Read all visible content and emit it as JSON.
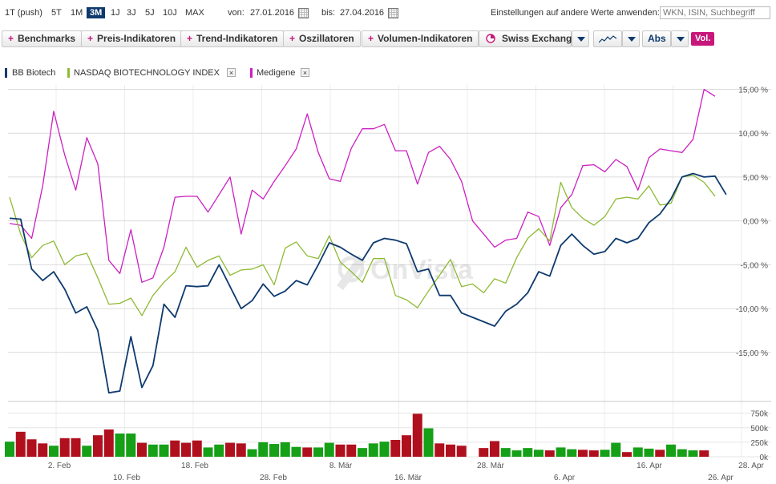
{
  "toolbar": {
    "periods": [
      "1T (push)",
      "5T",
      "1M",
      "3M",
      "1J",
      "3J",
      "5J",
      "10J",
      "MAX"
    ],
    "active_period": "3M",
    "from_label": "von:",
    "from_value": "27.01.2016",
    "to_label": "bis:",
    "to_value": "27.04.2016",
    "apply_label": "Einstellungen auf andere Werte anwenden:",
    "search_placeholder": "WKN, ISIN, Suchbegriff"
  },
  "indicator_buttons": [
    "Benchmarks",
    "Preis-Indikatoren",
    "Trend-Indikatoren",
    "Oszillatoren",
    "Volumen-Indikatoren"
  ],
  "exchange": "Swiss Exchange",
  "scale": "Abs",
  "volume_toggle": "Vol.",
  "colors": {
    "bb": "#0e3a6e",
    "nasdaq": "#8dba34",
    "medigene": "#cc1fc2",
    "vol_up": "#15a017",
    "vol_down": "#b0101e",
    "accent": "#c8177a"
  },
  "chart_data": {
    "type": "line",
    "ylabel_unit": "%",
    "y_ticks": [
      "15,00 %",
      "10,00 %",
      "5,00 %",
      "0,00 %",
      "-5,00 %",
      "-10,00 %",
      "-15,00 %"
    ],
    "y_tick_values": [
      15,
      10,
      5,
      0,
      -5,
      -10,
      -15
    ],
    "ylim": [
      -20.5,
      15.5
    ],
    "x_range": [
      "2016-01-27",
      "2016-04-28"
    ],
    "x_ticks_top": [
      "2. Feb",
      "18. Feb",
      "8. Mär",
      "28. Mär",
      "16. Apr",
      "28. Apr"
    ],
    "x_ticks_bottom": [
      "10. Feb",
      "28. Feb",
      "16. Mär",
      "6. Apr",
      "26. Apr"
    ],
    "series": [
      {
        "name": "BB Biotech",
        "color": "#0e3a6e",
        "removable": false,
        "values": [
          [
            0,
            0.3
          ],
          [
            1,
            0.2
          ],
          [
            2,
            -5.5
          ],
          [
            3,
            -6.8
          ],
          [
            4,
            -5.8
          ],
          [
            5,
            -7.8
          ],
          [
            6,
            -10.5
          ],
          [
            7,
            -9.8
          ],
          [
            8,
            -12.5
          ],
          [
            9,
            -19.6
          ],
          [
            10,
            -19.4
          ],
          [
            11,
            -13.2
          ],
          [
            12,
            -19
          ],
          [
            13,
            -16.5
          ],
          [
            14,
            -9.5
          ],
          [
            15,
            -11
          ],
          [
            16,
            -7.4
          ],
          [
            17,
            -7.5
          ],
          [
            18,
            -7.4
          ],
          [
            19,
            -5
          ],
          [
            20,
            -7.5
          ],
          [
            21,
            -10
          ],
          [
            22,
            -9.1
          ],
          [
            23,
            -7.2
          ],
          [
            24,
            -8.6
          ],
          [
            25,
            -8
          ],
          [
            26,
            -6.8
          ],
          [
            27,
            -7.3
          ],
          [
            28,
            -5
          ],
          [
            29,
            -2.5
          ],
          [
            30,
            -3
          ],
          [
            31,
            -3.8
          ],
          [
            32,
            -4.5
          ],
          [
            33,
            -2.5
          ],
          [
            34,
            -2
          ],
          [
            35,
            -2.2
          ],
          [
            36,
            -2.6
          ],
          [
            37,
            -5.8
          ],
          [
            38,
            -5.5
          ],
          [
            39,
            -8.5
          ],
          [
            40,
            -8.5
          ],
          [
            41,
            -10.5
          ],
          [
            42,
            -11
          ],
          [
            43,
            -11.5
          ],
          [
            44,
            -12
          ],
          [
            45,
            -10.3
          ],
          [
            46,
            -9.5
          ],
          [
            47,
            -8.2
          ],
          [
            48,
            -5.8
          ],
          [
            49,
            -6.3
          ],
          [
            50,
            -2.8
          ],
          [
            51,
            -1.5
          ],
          [
            52,
            -2.8
          ],
          [
            53,
            -3.8
          ],
          [
            54,
            -3.5
          ],
          [
            55,
            -2
          ],
          [
            56,
            -2.5
          ],
          [
            57,
            -2
          ],
          [
            58,
            -0.2
          ],
          [
            59,
            0.8
          ],
          [
            60,
            2.5
          ],
          [
            61,
            5
          ],
          [
            62,
            5.4
          ],
          [
            63,
            5
          ],
          [
            64,
            5.1
          ],
          [
            65,
            3
          ]
        ]
      },
      {
        "name": "NASDAQ BIOTECHNOLOGY INDEX",
        "color": "#8dba34",
        "removable": true,
        "values": [
          [
            0,
            2.7
          ],
          [
            1,
            -1.5
          ],
          [
            2,
            -4.2
          ],
          [
            3,
            -2.8
          ],
          [
            4,
            -2.3
          ],
          [
            5,
            -5
          ],
          [
            6,
            -4
          ],
          [
            7,
            -3.7
          ],
          [
            8,
            -6.5
          ],
          [
            9,
            -9.5
          ],
          [
            10,
            -9.4
          ],
          [
            11,
            -8.8
          ],
          [
            12,
            -10.8
          ],
          [
            13,
            -8.5
          ],
          [
            14,
            -7
          ],
          [
            15,
            -5.8
          ],
          [
            16,
            -3
          ],
          [
            17,
            -5.3
          ],
          [
            18,
            -4.5
          ],
          [
            19,
            -4
          ],
          [
            20,
            -6.2
          ],
          [
            21,
            -5.6
          ],
          [
            22,
            -5.5
          ],
          [
            23,
            -5
          ],
          [
            24,
            -7.3
          ],
          [
            25,
            -3.1
          ],
          [
            26,
            -2.4
          ],
          [
            27,
            -4
          ],
          [
            28,
            -4.3
          ],
          [
            29,
            -1.7
          ],
          [
            30,
            -4.7
          ],
          [
            31,
            -5.8
          ],
          [
            32,
            -7
          ],
          [
            33,
            -4.3
          ],
          [
            34,
            -4.3
          ],
          [
            35,
            -8.5
          ],
          [
            36,
            -9
          ],
          [
            37,
            -9.9
          ],
          [
            38,
            -8
          ],
          [
            39,
            -6.2
          ],
          [
            40,
            -4.4
          ],
          [
            41,
            -7.5
          ],
          [
            42,
            -7.2
          ],
          [
            43,
            -8.2
          ],
          [
            44,
            -6.6
          ],
          [
            45,
            -7.1
          ],
          [
            46,
            -4.2
          ],
          [
            47,
            -2
          ],
          [
            48,
            -0.9
          ],
          [
            49,
            -2.3
          ],
          [
            50,
            4.4
          ],
          [
            51,
            1.5
          ],
          [
            52,
            0.3
          ],
          [
            53,
            -0.5
          ],
          [
            54,
            0.5
          ],
          [
            55,
            2.5
          ],
          [
            56,
            2.7
          ],
          [
            57,
            2.5
          ],
          [
            58,
            4
          ],
          [
            59,
            1.8
          ],
          [
            60,
            2
          ],
          [
            61,
            5
          ],
          [
            62,
            5.2
          ],
          [
            63,
            4.4
          ],
          [
            64,
            2.8
          ]
        ]
      },
      {
        "name": "Medigene",
        "color": "#cc1fc2",
        "removable": true,
        "values": [
          [
            0,
            -0.3
          ],
          [
            1,
            -0.5
          ],
          [
            2,
            -2
          ],
          [
            3,
            4
          ],
          [
            4,
            12.5
          ],
          [
            5,
            7.5
          ],
          [
            6,
            3.5
          ],
          [
            7,
            9.5
          ],
          [
            8,
            6.5
          ],
          [
            9,
            -4.5
          ],
          [
            10,
            -6
          ],
          [
            11,
            -1
          ],
          [
            12,
            -7
          ],
          [
            13,
            -6.5
          ],
          [
            14,
            -3
          ],
          [
            15,
            2.7
          ],
          [
            16,
            2.8
          ],
          [
            17,
            2.8
          ],
          [
            18,
            1
          ],
          [
            19,
            3
          ],
          [
            20,
            5
          ],
          [
            21,
            -1.5
          ],
          [
            22,
            3.5
          ],
          [
            23,
            2.5
          ],
          [
            24,
            4.5
          ],
          [
            25,
            6.3
          ],
          [
            26,
            8.2
          ],
          [
            27,
            12.2
          ],
          [
            28,
            7.8
          ],
          [
            29,
            4.8
          ],
          [
            30,
            4.5
          ],
          [
            31,
            8.3
          ],
          [
            32,
            10.5
          ],
          [
            33,
            10.5
          ],
          [
            34,
            11
          ],
          [
            35,
            8
          ],
          [
            36,
            8
          ],
          [
            37,
            4.2
          ],
          [
            38,
            7.8
          ],
          [
            39,
            8.5
          ],
          [
            40,
            7
          ],
          [
            41,
            4.5
          ],
          [
            42,
            0
          ],
          [
            43,
            -1.5
          ],
          [
            44,
            -3
          ],
          [
            45,
            -2.2
          ],
          [
            46,
            -2
          ],
          [
            47,
            1
          ],
          [
            48,
            0.5
          ],
          [
            49,
            -2.8
          ],
          [
            50,
            1.5
          ],
          [
            51,
            3
          ],
          [
            52,
            6.3
          ],
          [
            53,
            6.4
          ],
          [
            54,
            5.6
          ],
          [
            55,
            7
          ],
          [
            56,
            6.2
          ],
          [
            57,
            3.5
          ],
          [
            58,
            7.2
          ],
          [
            59,
            8.2
          ],
          [
            60,
            8
          ],
          [
            61,
            7.8
          ],
          [
            62,
            9.3
          ],
          [
            63,
            15
          ],
          [
            64,
            14.2
          ]
        ]
      }
    ],
    "volume": {
      "y_ticks": [
        "750k",
        "500k",
        "250k",
        "0k"
      ],
      "y_tick_values": [
        750000,
        500000,
        250000,
        0
      ],
      "ylim": [
        0,
        800000
      ],
      "bars": [
        {
          "i": 0,
          "v": 260000,
          "dir": "up"
        },
        {
          "i": 1,
          "v": 430000,
          "dir": "down"
        },
        {
          "i": 2,
          "v": 300000,
          "dir": "down"
        },
        {
          "i": 3,
          "v": 230000,
          "dir": "down"
        },
        {
          "i": 4,
          "v": 190000,
          "dir": "up"
        },
        {
          "i": 5,
          "v": 320000,
          "dir": "down"
        },
        {
          "i": 6,
          "v": 320000,
          "dir": "down"
        },
        {
          "i": 7,
          "v": 190000,
          "dir": "up"
        },
        {
          "i": 8,
          "v": 370000,
          "dir": "down"
        },
        {
          "i": 9,
          "v": 470000,
          "dir": "down"
        },
        {
          "i": 10,
          "v": 400000,
          "dir": "up"
        },
        {
          "i": 11,
          "v": 400000,
          "dir": "up"
        },
        {
          "i": 12,
          "v": 240000,
          "dir": "down"
        },
        {
          "i": 13,
          "v": 210000,
          "dir": "up"
        },
        {
          "i": 14,
          "v": 210000,
          "dir": "up"
        },
        {
          "i": 15,
          "v": 280000,
          "dir": "down"
        },
        {
          "i": 16,
          "v": 240000,
          "dir": "down"
        },
        {
          "i": 17,
          "v": 280000,
          "dir": "down"
        },
        {
          "i": 18,
          "v": 160000,
          "dir": "up"
        },
        {
          "i": 19,
          "v": 210000,
          "dir": "up"
        },
        {
          "i": 20,
          "v": 240000,
          "dir": "down"
        },
        {
          "i": 21,
          "v": 230000,
          "dir": "down"
        },
        {
          "i": 22,
          "v": 130000,
          "dir": "up"
        },
        {
          "i": 23,
          "v": 250000,
          "dir": "up"
        },
        {
          "i": 24,
          "v": 220000,
          "dir": "up"
        },
        {
          "i": 25,
          "v": 250000,
          "dir": "up"
        },
        {
          "i": 26,
          "v": 170000,
          "dir": "up"
        },
        {
          "i": 27,
          "v": 160000,
          "dir": "down"
        },
        {
          "i": 28,
          "v": 160000,
          "dir": "up"
        },
        {
          "i": 29,
          "v": 240000,
          "dir": "up"
        },
        {
          "i": 30,
          "v": 210000,
          "dir": "down"
        },
        {
          "i": 31,
          "v": 210000,
          "dir": "down"
        },
        {
          "i": 32,
          "v": 150000,
          "dir": "up"
        },
        {
          "i": 33,
          "v": 230000,
          "dir": "up"
        },
        {
          "i": 34,
          "v": 260000,
          "dir": "up"
        },
        {
          "i": 35,
          "v": 290000,
          "dir": "down"
        },
        {
          "i": 36,
          "v": 370000,
          "dir": "down"
        },
        {
          "i": 37,
          "v": 740000,
          "dir": "down"
        },
        {
          "i": 38,
          "v": 490000,
          "dir": "up"
        },
        {
          "i": 39,
          "v": 230000,
          "dir": "down"
        },
        {
          "i": 40,
          "v": 210000,
          "dir": "down"
        },
        {
          "i": 41,
          "v": 190000,
          "dir": "down"
        },
        {
          "i": 43,
          "v": 150000,
          "dir": "down"
        },
        {
          "i": 44,
          "v": 270000,
          "dir": "down"
        },
        {
          "i": 45,
          "v": 150000,
          "dir": "up"
        },
        {
          "i": 46,
          "v": 110000,
          "dir": "up"
        },
        {
          "i": 47,
          "v": 150000,
          "dir": "up"
        },
        {
          "i": 48,
          "v": 120000,
          "dir": "up"
        },
        {
          "i": 49,
          "v": 110000,
          "dir": "down"
        },
        {
          "i": 50,
          "v": 160000,
          "dir": "up"
        },
        {
          "i": 51,
          "v": 130000,
          "dir": "up"
        },
        {
          "i": 52,
          "v": 120000,
          "dir": "down"
        },
        {
          "i": 53,
          "v": 110000,
          "dir": "down"
        },
        {
          "i": 54,
          "v": 120000,
          "dir": "up"
        },
        {
          "i": 55,
          "v": 240000,
          "dir": "up"
        },
        {
          "i": 56,
          "v": 80000,
          "dir": "down"
        },
        {
          "i": 57,
          "v": 160000,
          "dir": "up"
        },
        {
          "i": 58,
          "v": 140000,
          "dir": "up"
        },
        {
          "i": 59,
          "v": 120000,
          "dir": "down"
        },
        {
          "i": 60,
          "v": 210000,
          "dir": "up"
        },
        {
          "i": 61,
          "v": 130000,
          "dir": "up"
        },
        {
          "i": 62,
          "v": 110000,
          "dir": "up"
        },
        {
          "i": 63,
          "v": 110000,
          "dir": "down"
        }
      ]
    }
  }
}
